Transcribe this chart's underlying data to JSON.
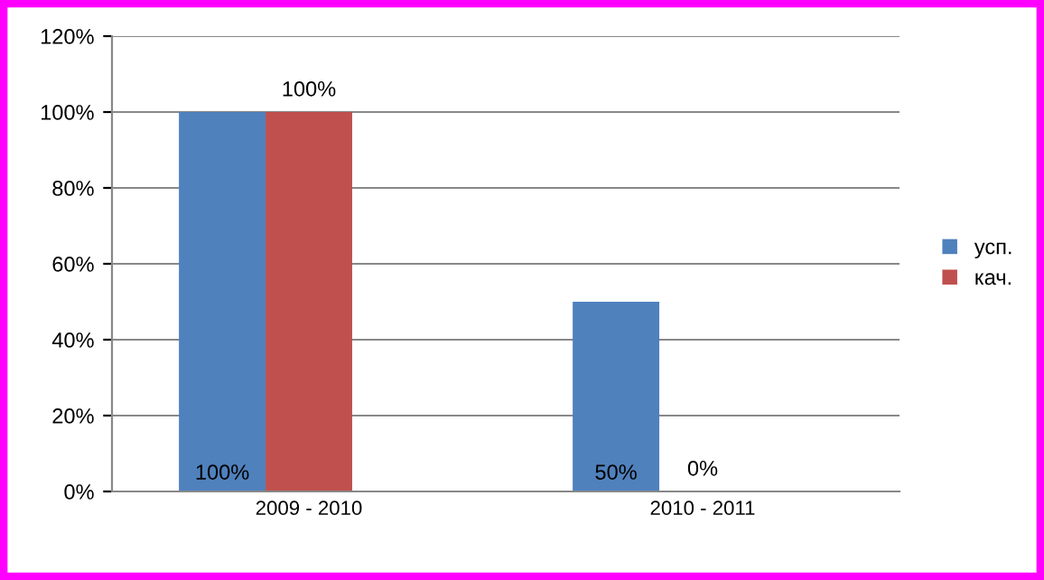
{
  "chart_data": {
    "type": "bar",
    "categories": [
      "2009 - 2010",
      "2010 - 2011"
    ],
    "series": [
      {
        "name": "усп.",
        "color": "#4f81bd",
        "values": [
          100,
          50
        ],
        "value_labels": [
          "100%",
          "50%"
        ]
      },
      {
        "name": "кач.",
        "color": "#c0504d",
        "values": [
          100,
          0
        ],
        "value_labels": [
          "100%",
          "0%"
        ]
      }
    ],
    "ylim": [
      0,
      120
    ],
    "yticks": [
      {
        "value": 0,
        "label": "0%"
      },
      {
        "value": 20,
        "label": "20%"
      },
      {
        "value": 40,
        "label": "40%"
      },
      {
        "value": 60,
        "label": "60%"
      },
      {
        "value": 80,
        "label": "80%"
      },
      {
        "value": 100,
        "label": "100%"
      },
      {
        "value": 120,
        "label": "120%"
      }
    ],
    "grid": "y",
    "legend": "right"
  }
}
